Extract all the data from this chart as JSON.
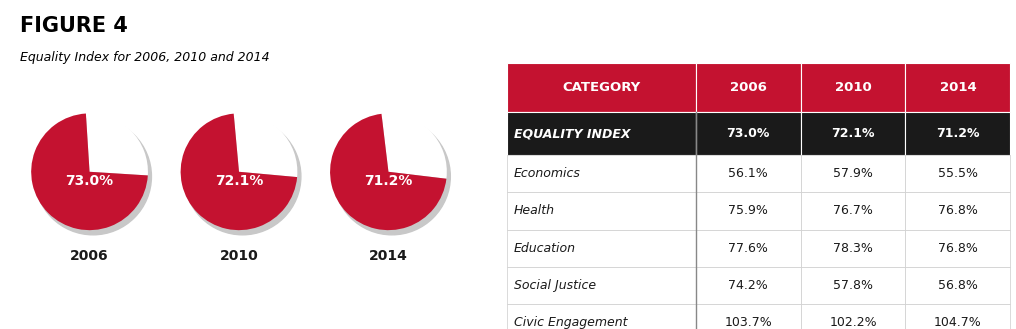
{
  "title": "FIGURE 4",
  "subtitle": "Equality Index for 2006, 2010 and 2014",
  "pie_years": [
    "2006",
    "2010",
    "2014"
  ],
  "pie_values": [
    73.0,
    72.1,
    71.2
  ],
  "pie_labels": [
    "73.0%",
    "72.1%",
    "71.2%"
  ],
  "pie_color": "#C41230",
  "table_header_bg": "#C41230",
  "table_header_text_color": "#ffffff",
  "table_index_bg": "#1a1a1a",
  "table_index_text_color": "#ffffff",
  "table_line_color": "#cccccc",
  "col_headers": [
    "CATEGORY",
    "2006",
    "2010",
    "2014"
  ],
  "index_row": [
    "EQUALITY INDEX",
    "73.0%",
    "72.1%",
    "71.2%"
  ],
  "data_rows": [
    [
      "Economics",
      "56.1%",
      "57.9%",
      "55.5%"
    ],
    [
      "Health",
      "75.9%",
      "76.7%",
      "76.8%"
    ],
    [
      "Education",
      "77.6%",
      "78.3%",
      "76.8%"
    ],
    [
      "Social Justice",
      "74.2%",
      "57.8%",
      "56.8%"
    ],
    [
      "Civic Engagement",
      "103.7%",
      "102.2%",
      "104.7%"
    ]
  ],
  "bg_color": "#ffffff"
}
